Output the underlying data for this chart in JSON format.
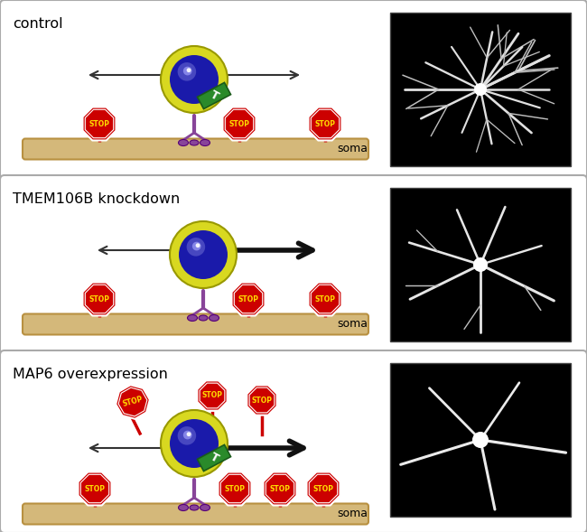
{
  "fig_w": 6.5,
  "fig_h": 5.89,
  "panel1_title": "control",
  "panel2_title": "TMEM106B knockdown",
  "panel3_title": "MAP6 overexpression",
  "bg_color": "#f5f5f5",
  "panel_face": "#ffffff",
  "panel_edge": "#aaaaaa",
  "lysosome_yellow": "#d8d820",
  "lysosome_blue": "#1a1aaa",
  "lysosome_highlight1": "#6060cc",
  "lysosome_highlight2": "#9090ee",
  "motor_green": "#2a8a2a",
  "motor_edge": "#1a5a1a",
  "motor_text": "T",
  "axle_color": "#884499",
  "foot_color": "#884499",
  "stop_red": "#cc0000",
  "stop_text_color": "#ffdd00",
  "stop_post_color": "#cc0000",
  "microtubule_fill": "#d4b87a",
  "microtubule_edge": "#b89040",
  "soma_text": "soma",
  "thin_arrow_color": "#333333",
  "bold_arrow_color": "#111111",
  "neuron_bg": "#000000"
}
